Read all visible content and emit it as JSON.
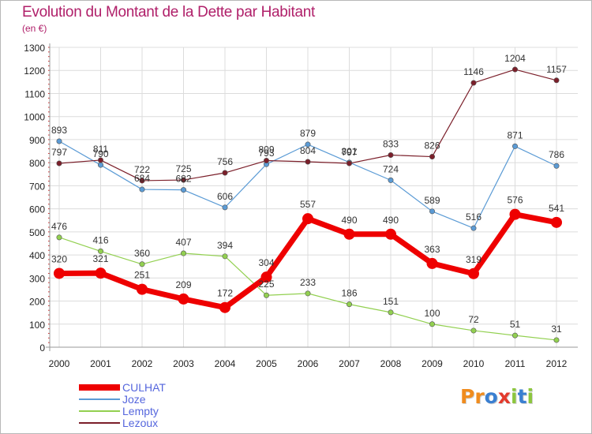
{
  "title": "Evolution du Montant de la Dette par Habitant",
  "subtitle": "(en €)",
  "logo": {
    "text": "Proxiti",
    "letters": [
      {
        "ch": "P",
        "color": "#f08c1e"
      },
      {
        "ch": "r",
        "color": "#f08c1e"
      },
      {
        "ch": "o",
        "color": "#3a7fd1"
      },
      {
        "ch": "x",
        "color": "#e33a2c"
      },
      {
        "ch": "i",
        "color": "#8cc63e"
      },
      {
        "ch": "t",
        "color": "#3a7fd1"
      },
      {
        "ch": "i",
        "color": "#8cc63e"
      }
    ]
  },
  "chart_data": {
    "type": "line",
    "x": [
      "2000",
      "2001",
      "2002",
      "2003",
      "2004",
      "2005",
      "2006",
      "2007",
      "2008",
      "2009",
      "2010",
      "2011",
      "2012"
    ],
    "ylim": [
      0,
      1300
    ],
    "yticks": [
      0,
      100,
      200,
      300,
      400,
      500,
      600,
      700,
      800,
      900,
      1000,
      1100,
      1200,
      1300
    ],
    "grid": true,
    "legend_position": "bottom-left",
    "series": [
      {
        "name": "Joze",
        "color": "#5b9bd5",
        "width": 1.2,
        "values": [
          893,
          790,
          684,
          682,
          606,
          793,
          879,
          801,
          724,
          589,
          516,
          871,
          786
        ],
        "labels": [
          "893",
          "790",
          "684",
          "682",
          "606",
          "793",
          "879",
          "801",
          "724",
          "589",
          "516",
          "871",
          "786"
        ]
      },
      {
        "name": "Lempty",
        "color": "#92d050",
        "width": 1.2,
        "values": [
          476,
          416,
          360,
          407,
          394,
          225,
          233,
          186,
          151,
          100,
          72,
          51,
          31
        ],
        "labels": [
          "476",
          "416",
          "360",
          "407",
          "394",
          "225",
          "233",
          "186",
          "151",
          "100",
          "72",
          "51",
          "31"
        ]
      },
      {
        "name": "Lezoux",
        "color": "#7b1f2a",
        "width": 1.2,
        "values": [
          797,
          811,
          722,
          725,
          756,
          809,
          804,
          797,
          833,
          826,
          1146,
          1204,
          1157
        ],
        "labels": [
          "797",
          "811",
          "722",
          "725",
          "756",
          "809",
          "804",
          "797",
          "833",
          "826",
          "1146",
          "1204",
          "1157"
        ]
      },
      {
        "name": "CULHAT",
        "color": "#ee0000",
        "width": 7,
        "values": [
          320,
          321,
          251,
          209,
          172,
          304,
          557,
          490,
          490,
          363,
          319,
          576,
          541
        ],
        "labels": [
          "320",
          "321",
          "251",
          "209",
          "172",
          "304",
          "557",
          "490",
          "490",
          "363",
          "319",
          "576",
          "541"
        ]
      }
    ],
    "legend": [
      "CULHAT",
      "Joze",
      "Lempty",
      "Lezoux"
    ]
  }
}
